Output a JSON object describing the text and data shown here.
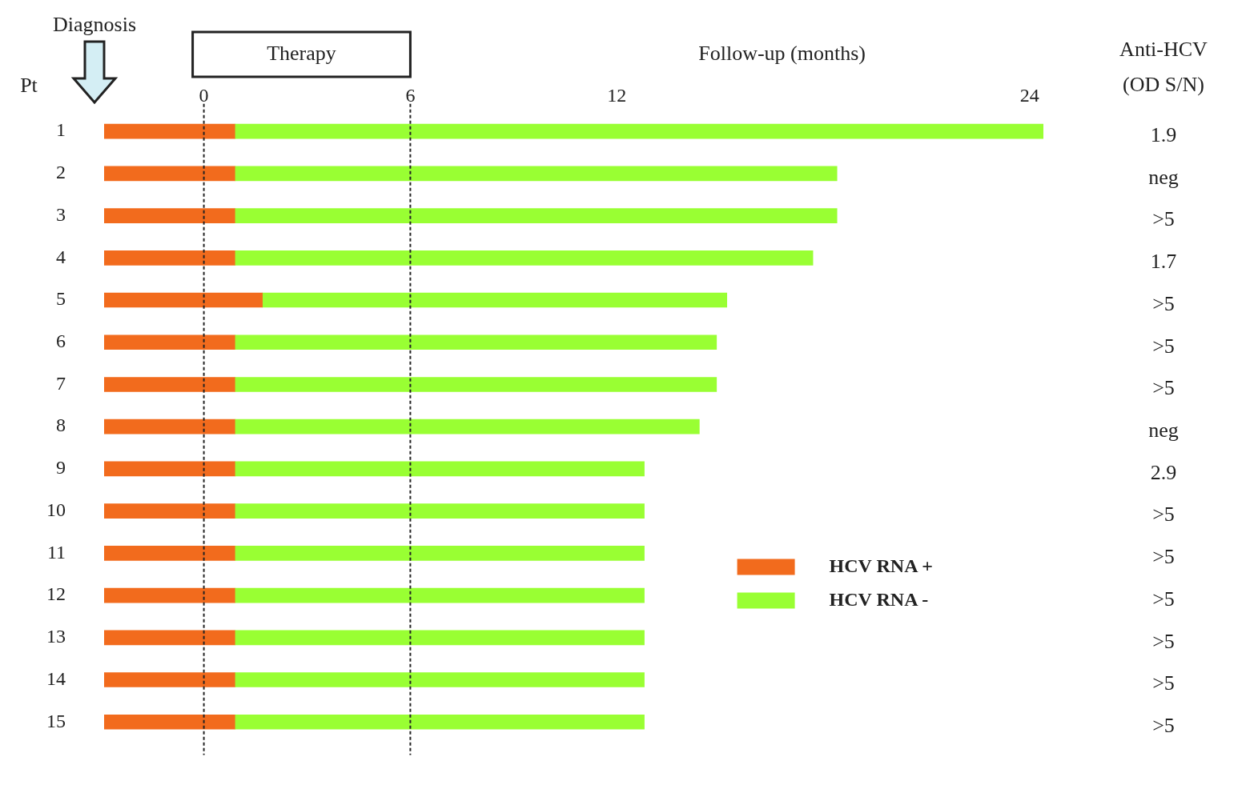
{
  "chart_data": {
    "type": "bar",
    "orientation": "horizontal",
    "xlabel": "Follow-up (months)",
    "ylabel": "Pt",
    "y2label": "Anti-HCV (OD S/N)",
    "categories": [
      "1",
      "2",
      "3",
      "4",
      "5",
      "6",
      "7",
      "8",
      "9",
      "10",
      "11",
      "12",
      "13",
      "14",
      "15"
    ],
    "series": [
      {
        "name": "HCV RNA +",
        "color": "#f26b1d",
        "base": [
          -2.9,
          -2.9,
          -2.9,
          -2.9,
          -2.9,
          -2.9,
          -2.9,
          -2.9,
          -2.9,
          -2.9,
          -2.9,
          -2.9,
          -2.9,
          -2.9,
          -2.9
        ],
        "values": [
          3.8,
          3.8,
          3.8,
          3.8,
          4.6,
          3.8,
          3.8,
          3.8,
          3.8,
          3.8,
          3.8,
          3.8,
          3.8,
          3.8,
          3.8
        ]
      },
      {
        "name": "HCV RNA -",
        "color": "#99ff33",
        "base": [
          0.9,
          0.9,
          0.9,
          0.9,
          1.7,
          0.9,
          0.9,
          0.9,
          0.9,
          0.9,
          0.9,
          0.9,
          0.9,
          0.9,
          0.9
        ],
        "values": [
          23.5,
          17.5,
          17.5,
          16.8,
          13.5,
          14.0,
          14.0,
          13.5,
          11.9,
          11.9,
          11.9,
          11.9,
          11.9,
          11.9,
          11.9
        ]
      }
    ],
    "xlim": [
      -2.9,
      24.4
    ],
    "xticks": [
      0,
      6,
      12,
      24
    ],
    "ref_lines": [
      {
        "axis": "x",
        "value": 0,
        "line_style": "dotted"
      },
      {
        "axis": "x",
        "value": 6,
        "line_style": "dotted"
      }
    ],
    "annotations": [
      "Diagnosis",
      "Therapy",
      "1.9",
      "neg",
      ">5",
      "1.7",
      ">5",
      ">5",
      ">5",
      "neg",
      "2.9",
      ">5",
      ">5",
      ">5",
      ">5",
      ">5",
      ">5"
    ],
    "legend": "bottom right",
    "grid": false
  }
}
